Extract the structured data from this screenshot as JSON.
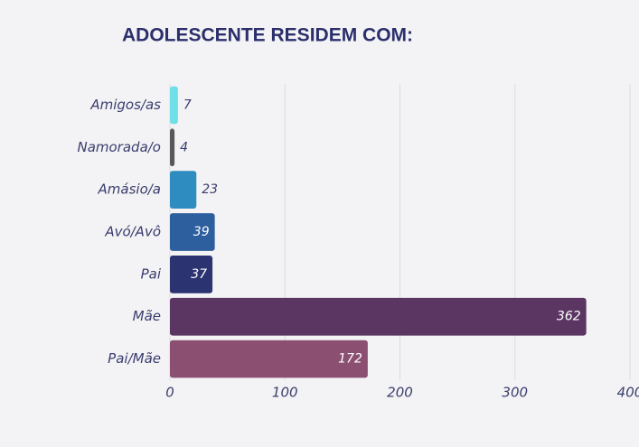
{
  "chart_data": {
    "type": "hbar",
    "title": "ADOLESCENTE RESIDEM COM:",
    "categories": [
      "Amigos/as",
      "Namorada/o",
      "Amásio/a",
      "Avó/Avô",
      "Pai",
      "Mãe",
      "Pai/Mãe"
    ],
    "values": [
      7,
      4,
      23,
      39,
      37,
      362,
      172
    ],
    "colors": [
      "#6fe0e8",
      "#58585a",
      "#2f8cc0",
      "#2d5e9e",
      "#2b3371",
      "#5b3662",
      "#8b5071"
    ],
    "xlim": [
      0,
      400
    ],
    "xticks": [
      0,
      100,
      200,
      300,
      400
    ],
    "grid": true
  }
}
